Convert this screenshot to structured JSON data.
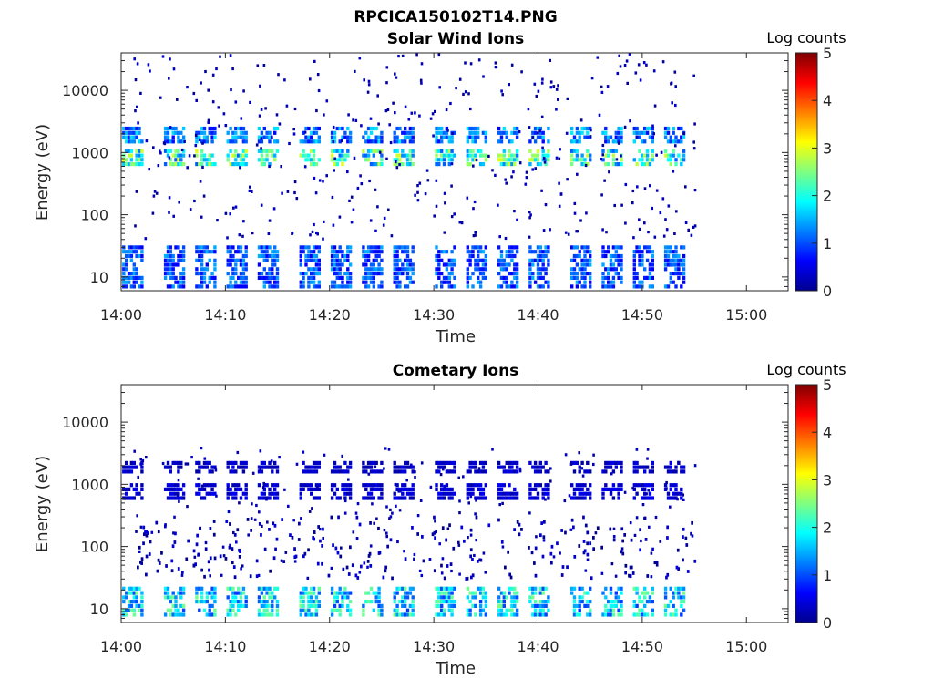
{
  "figure": {
    "file_title": "RPCICA150102T14.PNG"
  },
  "chart_data": [
    {
      "type": "heatmap",
      "title": "Solar Wind Ions",
      "xlabel": "Time",
      "ylabel": "Energy (eV)",
      "xlim": [
        "14:00",
        "15:04"
      ],
      "ylim": [
        6,
        40000
      ],
      "y_scale": "log",
      "x_ticks": [
        "14:00",
        "14:10",
        "14:20",
        "14:30",
        "14:40",
        "14:50",
        "15:00"
      ],
      "y_ticks": [
        "10",
        "100",
        "1000",
        "10000"
      ],
      "y_tick_values": [
        10,
        100,
        1000,
        10000
      ],
      "colorbar": {
        "label": "Log counts",
        "min": 0,
        "max": 5,
        "ticks": [
          "0",
          "1",
          "2",
          "3",
          "4",
          "5"
        ],
        "colormap": "jet"
      },
      "data_extent": {
        "start": "14:01",
        "end": "14:55"
      },
      "colorscale_note": "values are log10 counts",
      "bands": [
        {
          "energy_ev": [
            650,
            1100
          ],
          "peak_log_counts": 3.0,
          "pattern": "periodic bursts"
        },
        {
          "energy_ev": [
            1500,
            2500
          ],
          "peak_log_counts": 1.8,
          "pattern": "periodic bursts"
        },
        {
          "energy_ev": [
            7,
            30
          ],
          "peak_log_counts": 1.5,
          "pattern": "periodic bursts"
        }
      ],
      "burst_times": [
        "14:01",
        "14:05",
        "14:08",
        "14:11",
        "14:14",
        "14:18",
        "14:21",
        "14:24",
        "14:27",
        "14:31",
        "14:34",
        "14:37",
        "14:40",
        "14:44",
        "14:47",
        "14:50",
        "14:53"
      ],
      "grid": false
    },
    {
      "type": "heatmap",
      "title": "Cometary Ions",
      "xlabel": "Time",
      "ylabel": "Energy (eV)",
      "xlim": [
        "14:00",
        "15:04"
      ],
      "ylim": [
        6,
        40000
      ],
      "y_scale": "log",
      "x_ticks": [
        "14:00",
        "14:10",
        "14:20",
        "14:30",
        "14:40",
        "14:50",
        "15:00"
      ],
      "y_ticks": [
        "10",
        "100",
        "1000",
        "10000"
      ],
      "y_tick_values": [
        10,
        100,
        1000,
        10000
      ],
      "colorbar": {
        "label": "Log counts",
        "min": 0,
        "max": 5,
        "ticks": [
          "0",
          "1",
          "2",
          "3",
          "4",
          "5"
        ],
        "colormap": "jet"
      },
      "data_extent": {
        "start": "14:01",
        "end": "14:55"
      },
      "bands": [
        {
          "energy_ev": [
            8,
            22
          ],
          "peak_log_counts": 2.5,
          "pattern": "periodic bursts"
        },
        {
          "energy_ev": [
            600,
            1100
          ],
          "peak_log_counts": 0.6,
          "pattern": "periodic bursts"
        },
        {
          "energy_ev": [
            1600,
            2500
          ],
          "peak_log_counts": 0.5,
          "pattern": "periodic bursts"
        },
        {
          "energy_ev": [
            30,
            300
          ],
          "peak_log_counts": 0.5,
          "pattern": "sparse"
        }
      ],
      "burst_times": [
        "14:01",
        "14:05",
        "14:08",
        "14:11",
        "14:14",
        "14:18",
        "14:21",
        "14:24",
        "14:27",
        "14:31",
        "14:34",
        "14:37",
        "14:40",
        "14:44",
        "14:47",
        "14:50",
        "14:53"
      ],
      "grid": false
    }
  ]
}
